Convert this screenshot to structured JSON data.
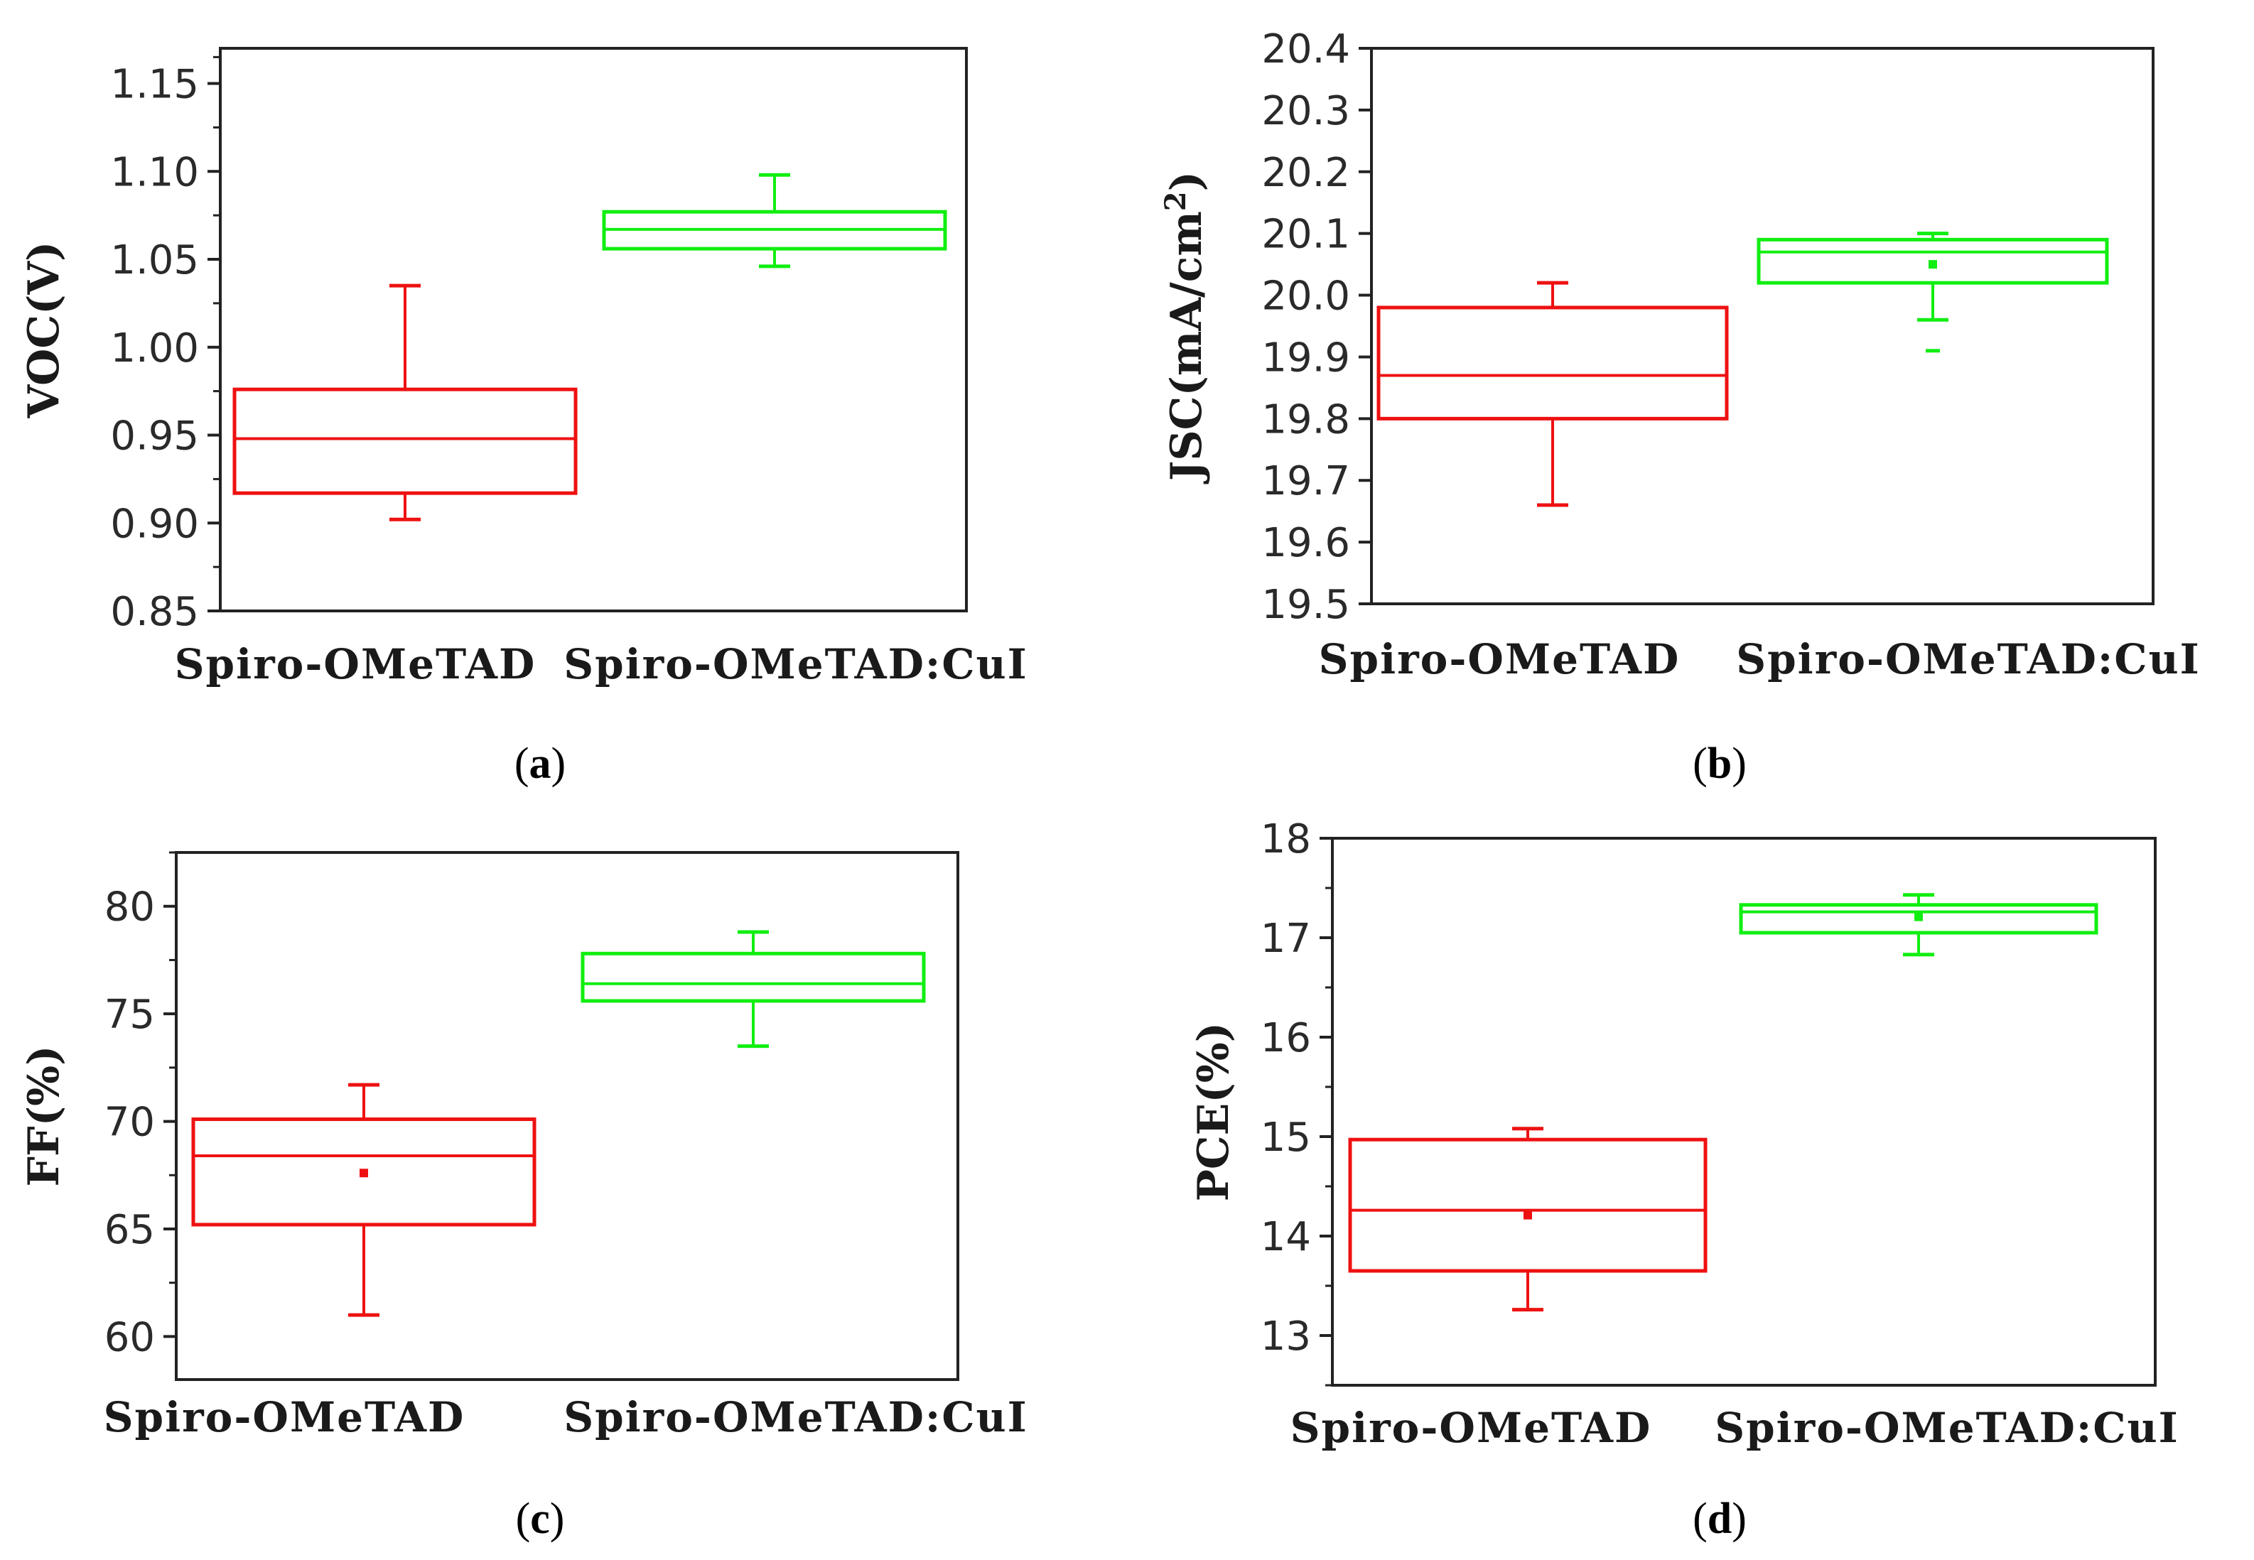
{
  "figure": {
    "type": "box-plot-panel-grid"
  },
  "colors": {
    "series_0": "#ee1111",
    "series_1": "#11ee11",
    "axis": "#222222"
  },
  "chart_data": [
    {
      "type": "box",
      "panel_label": "a",
      "caption_open": "(",
      "caption_close": ")",
      "ylabel": "VOC(V)",
      "ylim": [
        0.85,
        1.17
      ],
      "yticks": [
        "0.85",
        "0.90",
        "0.95",
        "1.00",
        "1.05",
        "1.10",
        "1.15"
      ],
      "yticks_values": [
        0.85,
        0.9,
        0.95,
        1.0,
        1.05,
        1.1,
        1.15
      ],
      "minor_ticks": [
        0.875,
        0.925,
        0.975,
        1.025,
        1.075,
        1.125,
        1.165
      ],
      "categories": [
        "Spiro-OMeTAD",
        "Spiro-OMeTAD:CuI"
      ],
      "boxes": [
        {
          "name": "Spiro-OMeTAD",
          "min": 0.902,
          "q1": 0.917,
          "median": 0.948,
          "q3": 0.976,
          "max": 1.035,
          "mean": null,
          "outliers": []
        },
        {
          "name": "Spiro-OMeTAD:CuI",
          "min": 1.046,
          "q1": 1.056,
          "median": 1.067,
          "q3": 1.077,
          "max": 1.098,
          "mean": null,
          "outliers": []
        }
      ]
    },
    {
      "type": "box",
      "panel_label": "b",
      "caption_open": "(",
      "caption_close": ")",
      "ylabel": "JSC(mA/cm",
      "ylabel_sup": "2",
      "ylabel_tail": ")",
      "ylim": [
        19.5,
        20.4
      ],
      "yticks": [
        "19.5",
        "19.6",
        "19.7",
        "19.8",
        "19.9",
        "20.0",
        "20.1",
        "20.2",
        "20.3",
        "20.4"
      ],
      "yticks_values": [
        19.5,
        19.6,
        19.7,
        19.8,
        19.9,
        20.0,
        20.1,
        20.2,
        20.3,
        20.4
      ],
      "minor_ticks": [],
      "categories": [
        "Spiro-OMeTAD",
        "Spiro-OMeTAD:CuI"
      ],
      "boxes": [
        {
          "name": "Spiro-OMeTAD",
          "min": 19.66,
          "q1": 19.8,
          "median": 19.87,
          "q3": 19.98,
          "max": 20.02,
          "mean": null,
          "outliers": []
        },
        {
          "name": "Spiro-OMeTAD:CuI",
          "min": 19.96,
          "q1": 20.02,
          "median": 20.07,
          "q3": 20.09,
          "max": 20.1,
          "mean": 20.05,
          "outliers": [
            19.91
          ]
        }
      ]
    },
    {
      "type": "box",
      "panel_label": "c",
      "caption_open": "(",
      "caption_close": ")",
      "ylabel": "FF(%)",
      "ylim": [
        58,
        82.5
      ],
      "yticks": [
        "60",
        "65",
        "70",
        "75",
        "80"
      ],
      "yticks_values": [
        60,
        65,
        70,
        75,
        80
      ],
      "minor_ticks": [
        62.5,
        67.5,
        72.5,
        77.5,
        82.5
      ],
      "categories": [
        "Spiro-OMeTAD",
        "Spiro-OMeTAD:CuI"
      ],
      "boxes": [
        {
          "name": "Spiro-OMeTAD",
          "min": 61.0,
          "q1": 65.2,
          "median": 68.4,
          "q3": 70.1,
          "max": 71.7,
          "mean": 67.6,
          "outliers": []
        },
        {
          "name": "Spiro-OMeTAD:CuI",
          "min": 73.5,
          "q1": 75.6,
          "median": 76.4,
          "q3": 77.8,
          "max": 78.8,
          "mean": null,
          "outliers": []
        }
      ]
    },
    {
      "type": "box",
      "panel_label": "d",
      "caption_open": "(",
      "caption_close": ")",
      "ylabel": "PCE(%)",
      "ylim": [
        12.5,
        18
      ],
      "yticks": [
        "13",
        "14",
        "15",
        "16",
        "17",
        "18"
      ],
      "yticks_values": [
        13,
        14,
        15,
        16,
        17,
        18
      ],
      "minor_ticks": [
        12.5,
        13.5,
        14.5,
        15.5,
        16.5,
        17.5
      ],
      "categories": [
        "Spiro-OMeTAD",
        "Spiro-OMeTAD:CuI"
      ],
      "boxes": [
        {
          "name": "Spiro-OMeTAD",
          "min": 13.26,
          "q1": 13.65,
          "median": 14.26,
          "q3": 14.97,
          "max": 15.08,
          "mean": 14.21,
          "outliers": []
        },
        {
          "name": "Spiro-OMeTAD:CuI",
          "min": 16.83,
          "q1": 17.05,
          "median": 17.26,
          "q3": 17.33,
          "max": 17.43,
          "mean": 17.21,
          "outliers": []
        }
      ]
    }
  ]
}
